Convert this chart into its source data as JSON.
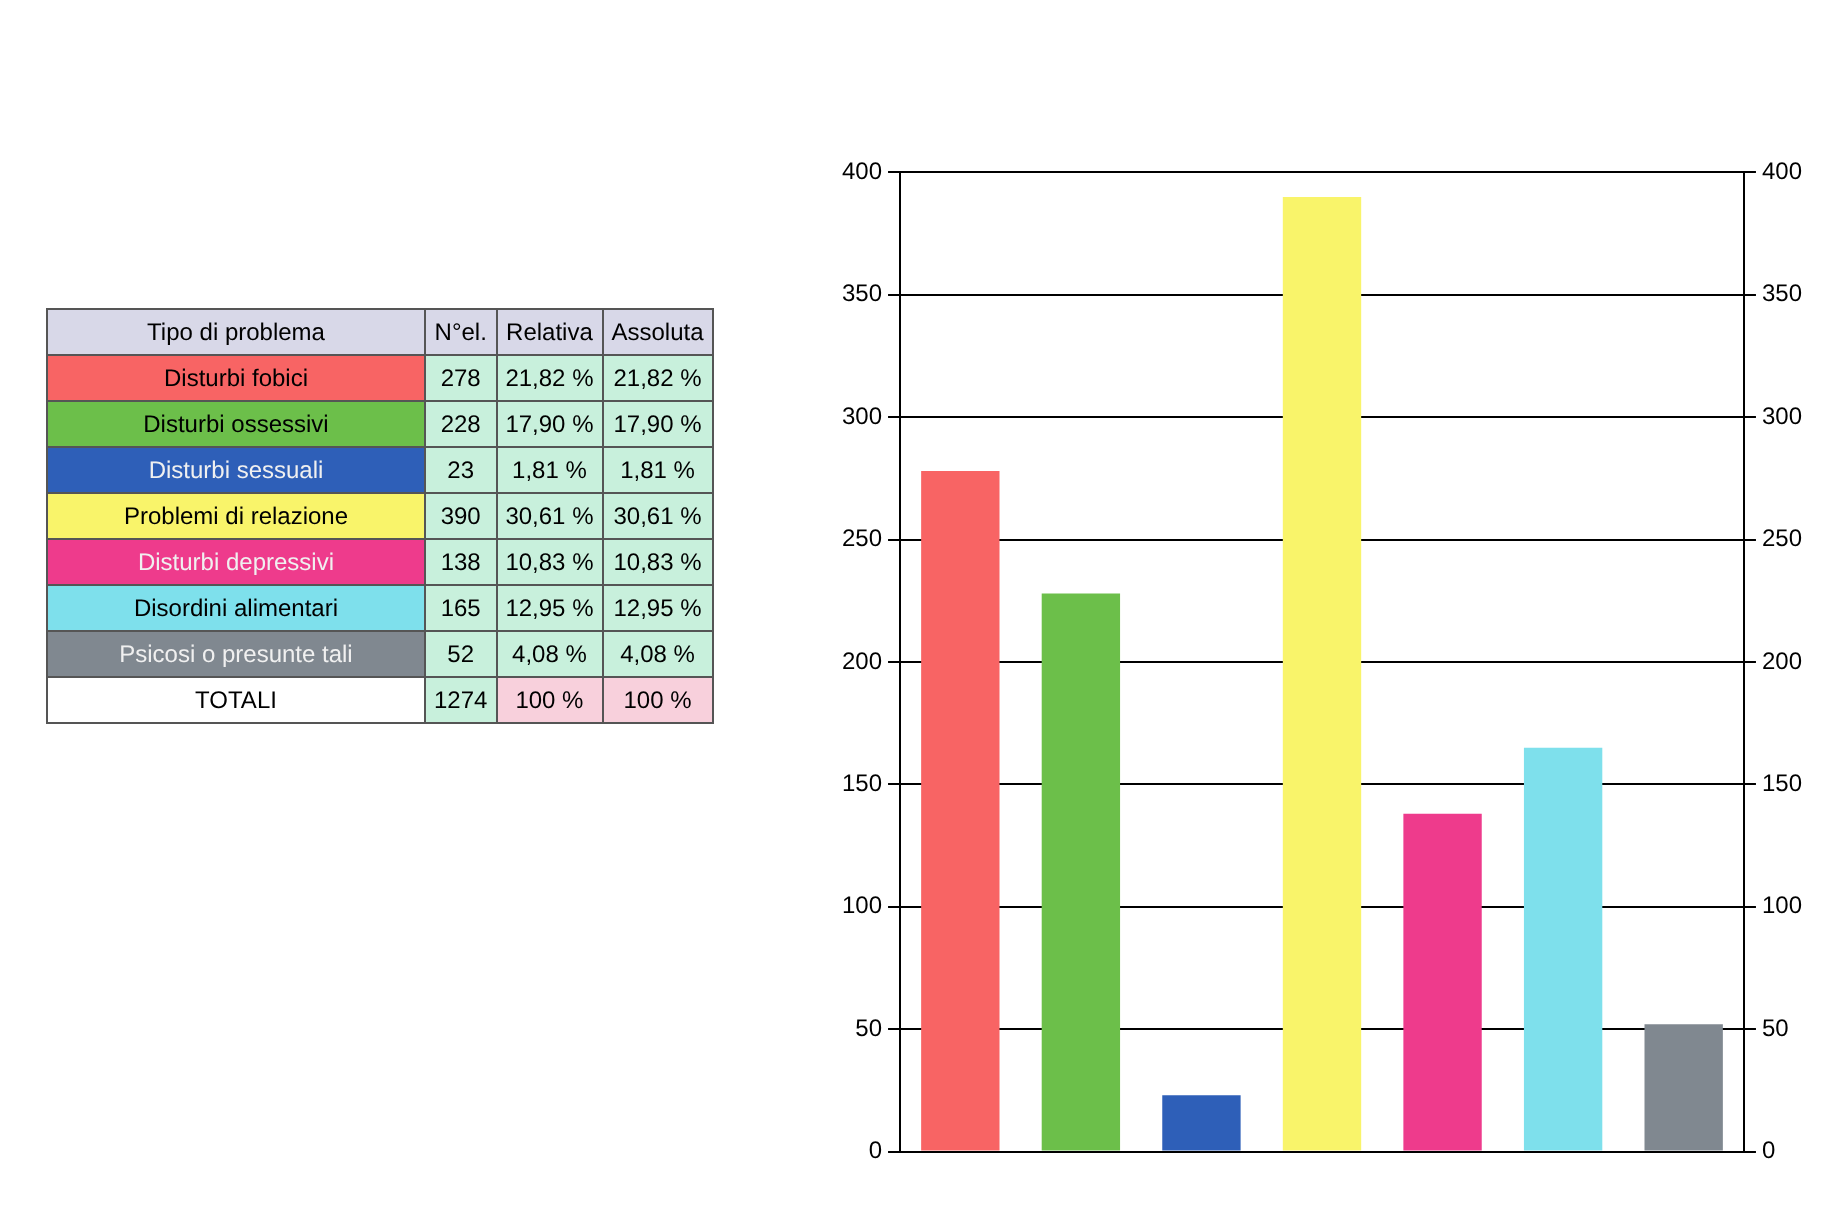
{
  "chart_data": {
    "type": "bar",
    "categories": [
      null,
      null,
      null,
      null,
      null,
      null,
      null
    ],
    "values": [
      278,
      228,
      23,
      390,
      138,
      165,
      52
    ],
    "colors": [
      "#f86464",
      "#6cbf4a",
      "#2e5fb8",
      "#f9f46a",
      "#ee3b8c",
      "#7ee0ec",
      "#808890"
    ],
    "ylim": [
      0,
      400
    ],
    "yticks": [
      0,
      50,
      100,
      150,
      200,
      250,
      300,
      350,
      400
    ],
    "y2lim": [
      0,
      400
    ],
    "y2ticks": [
      0,
      50,
      100,
      150,
      200,
      250,
      300,
      350,
      400
    ],
    "grid": "y",
    "legend": false,
    "tick_labels": "y",
    "annotations": [
      "Tipo di problema",
      "N°el.",
      "Relativa",
      "Assoluta",
      "Disturbi fobici",
      "278",
      "21,82 %",
      "21,82 %",
      "Disturbi ossessivi",
      "228",
      "17,90 %",
      "17,90 %",
      "Disturbi sessuali",
      "23",
      "1,81 %",
      "1,81 %",
      "Problemi di relazione",
      "390",
      "30,61 %",
      "30,61 %",
      "Disturbi depressivi",
      "138",
      "10,83 %",
      "10,83 %",
      "Disordini alimentari",
      "165",
      "12,95 %",
      "12,95 %",
      "Psicosi o presunte tali",
      "52",
      "4,08 %",
      "4,08 %",
      "TOTALI",
      "1274",
      "100 %",
      "100 %"
    ]
  }
}
